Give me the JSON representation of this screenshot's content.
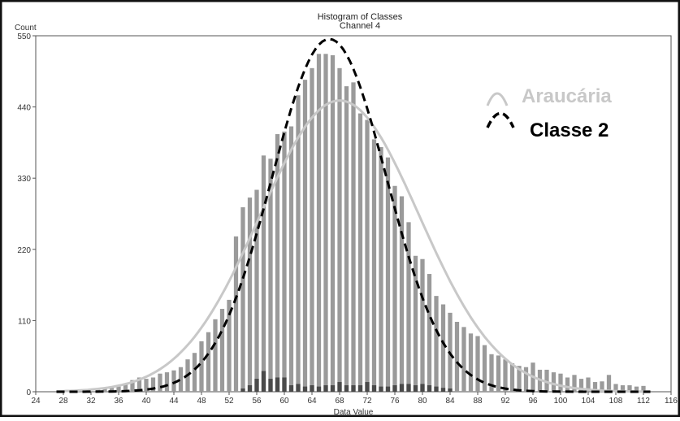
{
  "chart_data": {
    "type": "bar",
    "title": "Histogram of Classes",
    "subtitle": "Channel 4",
    "ylabel": "Count",
    "xlabel": "Data Value",
    "xlim": [
      24,
      116
    ],
    "ylim": [
      0,
      550
    ],
    "x_ticks": [
      "24",
      "28",
      "32",
      "36",
      "40",
      "44",
      "48",
      "52",
      "56",
      "60",
      "64",
      "68",
      "72",
      "76",
      "80",
      "84",
      "88",
      "92",
      "96",
      "100",
      "104",
      "108",
      "112",
      "116"
    ],
    "y_ticks": [
      "0",
      "110",
      "220",
      "330",
      "440",
      "550"
    ],
    "series": [
      {
        "x": [
          33,
          34,
          35,
          36,
          37,
          38,
          39,
          40,
          41,
          42,
          43,
          44,
          45,
          46,
          47,
          48,
          49,
          50,
          51,
          52,
          53,
          54,
          55,
          56,
          57,
          58,
          59,
          60,
          61,
          62,
          63,
          64,
          65,
          66,
          67,
          68,
          69,
          70,
          71,
          72,
          73,
          74,
          75,
          76,
          77,
          78,
          79,
          80,
          81,
          82,
          83,
          84,
          85,
          86,
          87,
          88,
          89,
          90,
          91,
          92,
          93,
          94,
          95,
          96,
          97,
          98,
          99,
          100,
          101,
          102,
          103,
          104,
          105,
          106,
          107,
          108,
          109,
          110,
          111,
          112
        ],
        "values": [
          3,
          5,
          6,
          8,
          12,
          18,
          22,
          20,
          22,
          28,
          30,
          33,
          38,
          50,
          60,
          78,
          92,
          112,
          128,
          142,
          240,
          285,
          300,
          312,
          365,
          360,
          398,
          402,
          410,
          458,
          482,
          500,
          522,
          522,
          520,
          500,
          472,
          478,
          430,
          420,
          390,
          378,
          362,
          318,
          302,
          262,
          210,
          205,
          182,
          148,
          135,
          122,
          108,
          100,
          90,
          86,
          72,
          58,
          56,
          50,
          44,
          40,
          38,
          45,
          34,
          34,
          30,
          28,
          22,
          26,
          20,
          22,
          15,
          16,
          26,
          12,
          10,
          10,
          8,
          9
        ]
      },
      {
        "x": [
          54,
          55,
          56,
          57,
          58,
          59,
          60,
          61,
          62,
          63,
          64,
          65,
          66,
          67,
          68,
          69,
          70,
          71,
          72,
          73,
          74,
          75,
          76,
          77,
          78,
          79,
          80,
          81,
          82,
          83,
          84
        ],
        "values": [
          5,
          10,
          20,
          32,
          20,
          22,
          22,
          10,
          12,
          8,
          10,
          8,
          10,
          10,
          15,
          10,
          10,
          10,
          15,
          10,
          8,
          8,
          10,
          12,
          12,
          10,
          12,
          10,
          8,
          6,
          5
        ]
      },
      {
        "name": "Araucária",
        "type": "line",
        "color": "#c8c8c8",
        "mean": 68,
        "peak": 450,
        "sd": 11.5
      },
      {
        "name": "Classe 2",
        "type": "line",
        "style": "dashed",
        "color": "#000000",
        "mean": 66.5,
        "peak": 545,
        "sd": 8.3
      }
    ],
    "legend_position": "top-right",
    "grid": false
  }
}
